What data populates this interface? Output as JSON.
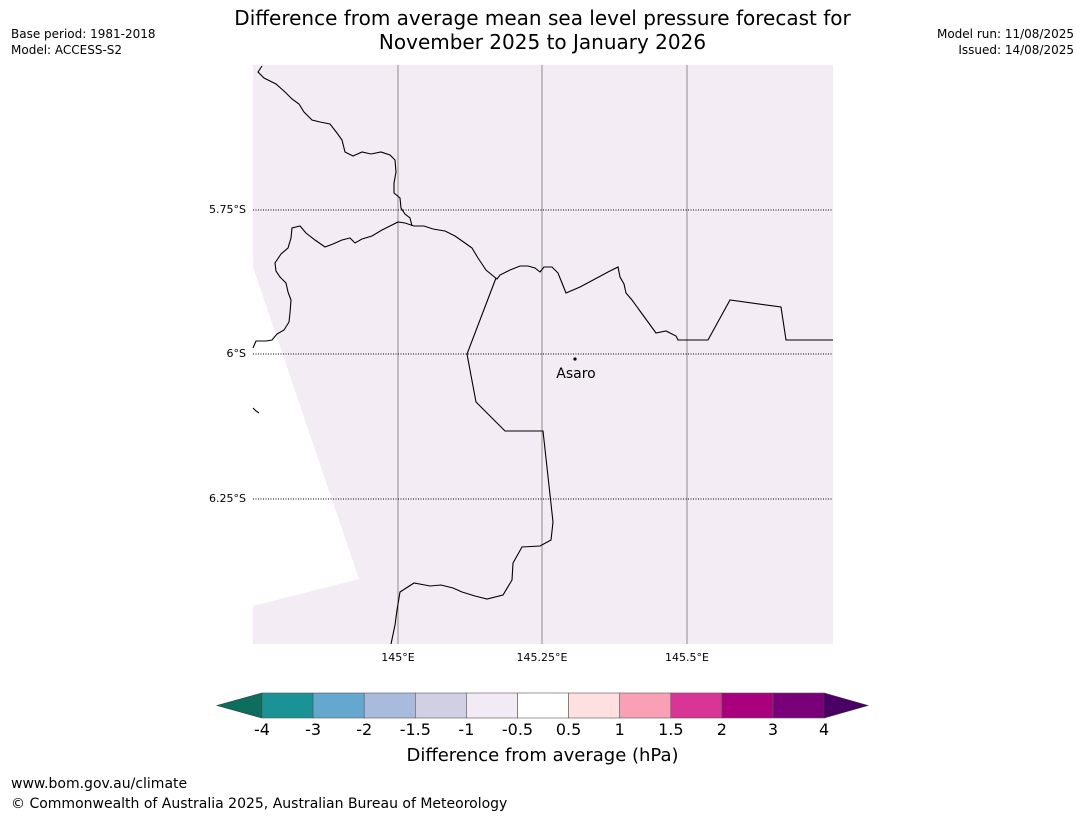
{
  "title": {
    "line1": "Difference from average mean sea level pressure forecast for",
    "line2": "November 2025 to January 2026"
  },
  "meta_left": {
    "base_period": "Base period: 1981-2018",
    "model": "Model: ACCESS-S2"
  },
  "meta_right": {
    "model_run": "Model run: 11/08/2025",
    "issued": "Issued: 14/08/2025"
  },
  "map": {
    "fill_color": "#f3ecf4",
    "lat_labels": [
      "5.75°S",
      "6°S",
      "6.25°S"
    ],
    "lon_labels": [
      "145°E",
      "145.25°E",
      "145.5°E"
    ],
    "place": {
      "name": "Asaro"
    }
  },
  "colorbar": {
    "label": "Difference from average (hPa)",
    "ticks": [
      "-4",
      "-3",
      "-2",
      "-1.5",
      "-1",
      "-0.5",
      "0.5",
      "1",
      "1.5",
      "2",
      "3",
      "4"
    ],
    "under_color": "#0b6e5f",
    "over_color": "#4a0064",
    "colors": [
      "#1a9296",
      "#65a8cf",
      "#a8bbdc",
      "#d0cfe4",
      "#f2eaf4",
      "#ffffff",
      "#fde0df",
      "#f9a0b6",
      "#d83596",
      "#a9007e",
      "#7a007a"
    ]
  },
  "footer": {
    "url": "www.bom.gov.au/climate",
    "copyright": "© Commonwealth of Australia 2025, Australian Bureau of Meteorology"
  }
}
